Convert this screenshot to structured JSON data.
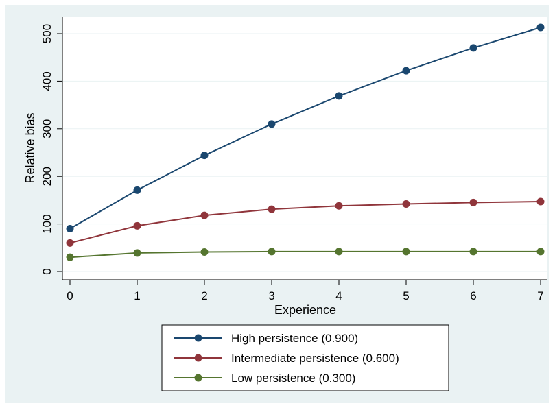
{
  "chart_data": {
    "type": "line",
    "xlabel": "Experience",
    "ylabel": "Relative bias",
    "x": [
      0,
      1,
      2,
      3,
      4,
      5,
      6,
      7
    ],
    "xlim": [
      0,
      7
    ],
    "ylim": [
      0,
      520
    ],
    "xticks": [
      0,
      1,
      2,
      3,
      4,
      5,
      6,
      7
    ],
    "yticks": [
      0,
      100,
      200,
      300,
      400,
      500
    ],
    "grid": true,
    "legend_position": "bottom",
    "series": [
      {
        "name": "High persistence (0.900)",
        "color": "#1a476f",
        "values": [
          90,
          171,
          244,
          310,
          369,
          422,
          470,
          513
        ]
      },
      {
        "name": "Intermediate persistence (0.600)",
        "color": "#90353b",
        "values": [
          60,
          96,
          118,
          131,
          138,
          142,
          145,
          147
        ]
      },
      {
        "name": "Low persistence (0.300)",
        "color": "#55752f",
        "values": [
          30,
          39,
          41,
          42,
          42,
          42,
          42,
          42
        ]
      }
    ]
  },
  "colors": {
    "outer_background": "#eaf2f3",
    "plot_background": "#ffffff",
    "grid": "#eaf2f3",
    "axis": "#000000"
  }
}
